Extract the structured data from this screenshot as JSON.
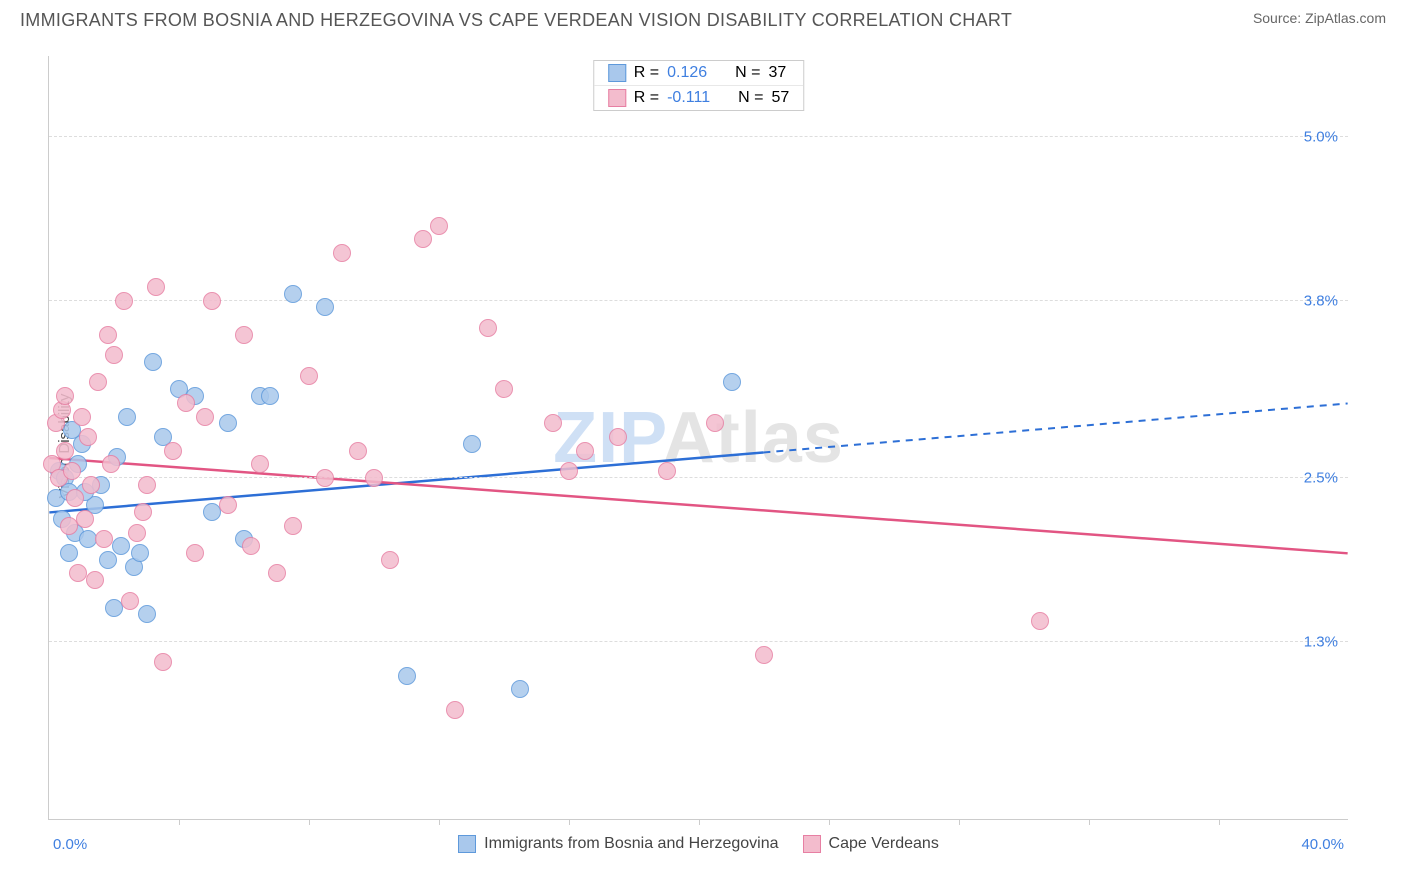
{
  "header": {
    "title": "IMMIGRANTS FROM BOSNIA AND HERZEGOVINA VS CAPE VERDEAN VISION DISABILITY CORRELATION CHART",
    "source_prefix": "Source: ",
    "source_name": "ZipAtlas.com"
  },
  "chart": {
    "type": "scatter",
    "ylabel": "Vision Disability",
    "xlim": [
      0,
      40
    ],
    "ylim": [
      0,
      5.6
    ],
    "background_color": "#ffffff",
    "grid_color": "#dddddd",
    "axis_color": "#cccccc",
    "y_ticks": [
      {
        "value": 1.3,
        "label": "1.3%"
      },
      {
        "value": 2.5,
        "label": "2.5%"
      },
      {
        "value": 3.8,
        "label": "3.8%"
      },
      {
        "value": 5.0,
        "label": "5.0%"
      }
    ],
    "y_tick_color": "#3f7fe0",
    "x_ticks": [
      4,
      8,
      12,
      16,
      20,
      24,
      28,
      32,
      36
    ],
    "x_axis_labels": {
      "left": {
        "text": "0.0%",
        "color": "#3f7fe0"
      },
      "right": {
        "text": "40.0%",
        "color": "#3f7fe0"
      }
    },
    "watermark": {
      "text_zip": "ZIP",
      "text_atlas": "Atlas",
      "color_zip": "#cfe0f5",
      "color_atlas": "#e4e4e4"
    },
    "point_radius": 9,
    "point_fill_opacity": 0.35,
    "series": [
      {
        "id": "bosnia",
        "label": "Immigrants from Bosnia and Herzegovina",
        "color_fill": "#a9c8ec",
        "color_stroke": "#5e99db",
        "r_value": "0.126",
        "n_value": "37",
        "trend": {
          "x1": 0,
          "y1": 2.25,
          "x2": 40,
          "y2": 3.05,
          "color": "#2d6fd6",
          "solid_until_x": 22
        },
        "points": [
          [
            0.2,
            2.35
          ],
          [
            0.3,
            2.55
          ],
          [
            0.4,
            2.2
          ],
          [
            0.5,
            2.5
          ],
          [
            0.6,
            2.4
          ],
          [
            0.7,
            2.85
          ],
          [
            0.8,
            2.1
          ],
          [
            0.9,
            2.6
          ],
          [
            1.0,
            2.75
          ],
          [
            1.2,
            2.05
          ],
          [
            1.4,
            2.3
          ],
          [
            1.6,
            2.45
          ],
          [
            1.8,
            1.9
          ],
          [
            2.0,
            1.55
          ],
          [
            2.2,
            2.0
          ],
          [
            2.4,
            2.95
          ],
          [
            2.6,
            1.85
          ],
          [
            2.8,
            1.95
          ],
          [
            3.0,
            1.5
          ],
          [
            3.2,
            3.35
          ],
          [
            3.5,
            2.8
          ],
          [
            4.0,
            3.15
          ],
          [
            4.5,
            3.1
          ],
          [
            5.0,
            2.25
          ],
          [
            5.5,
            2.9
          ],
          [
            6.0,
            2.05
          ],
          [
            6.5,
            3.1
          ],
          [
            6.8,
            3.1
          ],
          [
            7.5,
            3.85
          ],
          [
            8.5,
            3.75
          ],
          [
            11.0,
            1.05
          ],
          [
            14.5,
            0.95
          ],
          [
            13.0,
            2.75
          ],
          [
            21.0,
            3.2
          ],
          [
            2.1,
            2.65
          ],
          [
            1.1,
            2.4
          ],
          [
            0.6,
            1.95
          ]
        ]
      },
      {
        "id": "capeverdean",
        "label": "Cape Verdeans",
        "color_fill": "#f3bccd",
        "color_stroke": "#e77fa3",
        "r_value": "-0.111",
        "n_value": "57",
        "trend": {
          "x1": 0,
          "y1": 2.65,
          "x2": 40,
          "y2": 1.95,
          "color": "#e25583",
          "solid_until_x": 40
        },
        "points": [
          [
            0.1,
            2.6
          ],
          [
            0.2,
            2.9
          ],
          [
            0.3,
            2.5
          ],
          [
            0.4,
            3.0
          ],
          [
            0.5,
            2.7
          ],
          [
            0.6,
            2.15
          ],
          [
            0.7,
            2.55
          ],
          [
            0.8,
            2.35
          ],
          [
            0.9,
            1.8
          ],
          [
            1.0,
            2.95
          ],
          [
            1.1,
            2.2
          ],
          [
            1.2,
            2.8
          ],
          [
            1.4,
            1.75
          ],
          [
            1.5,
            3.2
          ],
          [
            1.7,
            2.05
          ],
          [
            1.9,
            2.6
          ],
          [
            2.0,
            3.4
          ],
          [
            2.3,
            3.8
          ],
          [
            2.5,
            1.6
          ],
          [
            2.7,
            2.1
          ],
          [
            3.0,
            2.45
          ],
          [
            3.3,
            3.9
          ],
          [
            3.5,
            1.15
          ],
          [
            3.8,
            2.7
          ],
          [
            4.2,
            3.05
          ],
          [
            4.5,
            1.95
          ],
          [
            5.0,
            3.8
          ],
          [
            5.5,
            2.3
          ],
          [
            6.0,
            3.55
          ],
          [
            6.5,
            2.6
          ],
          [
            7.0,
            1.8
          ],
          [
            7.5,
            2.15
          ],
          [
            8.0,
            3.25
          ],
          [
            8.5,
            2.5
          ],
          [
            9.0,
            4.15
          ],
          [
            9.5,
            2.7
          ],
          [
            10.0,
            2.5
          ],
          [
            10.5,
            1.9
          ],
          [
            11.5,
            4.25
          ],
          [
            12.0,
            4.35
          ],
          [
            12.5,
            0.8
          ],
          [
            13.5,
            3.6
          ],
          [
            14.0,
            3.15
          ],
          [
            15.5,
            2.9
          ],
          [
            16.0,
            2.55
          ],
          [
            16.5,
            2.7
          ],
          [
            17.5,
            2.8
          ],
          [
            19.0,
            2.55
          ],
          [
            20.5,
            2.9
          ],
          [
            22.0,
            1.2
          ],
          [
            30.5,
            1.45
          ],
          [
            1.3,
            2.45
          ],
          [
            0.5,
            3.1
          ],
          [
            1.8,
            3.55
          ],
          [
            4.8,
            2.95
          ],
          [
            6.2,
            2.0
          ],
          [
            2.9,
            2.25
          ]
        ]
      }
    ],
    "legend_top": {
      "r_label": "R  =",
      "n_label": "N  =",
      "text_color": "#555555",
      "value_color": "#3f7fe0"
    }
  }
}
